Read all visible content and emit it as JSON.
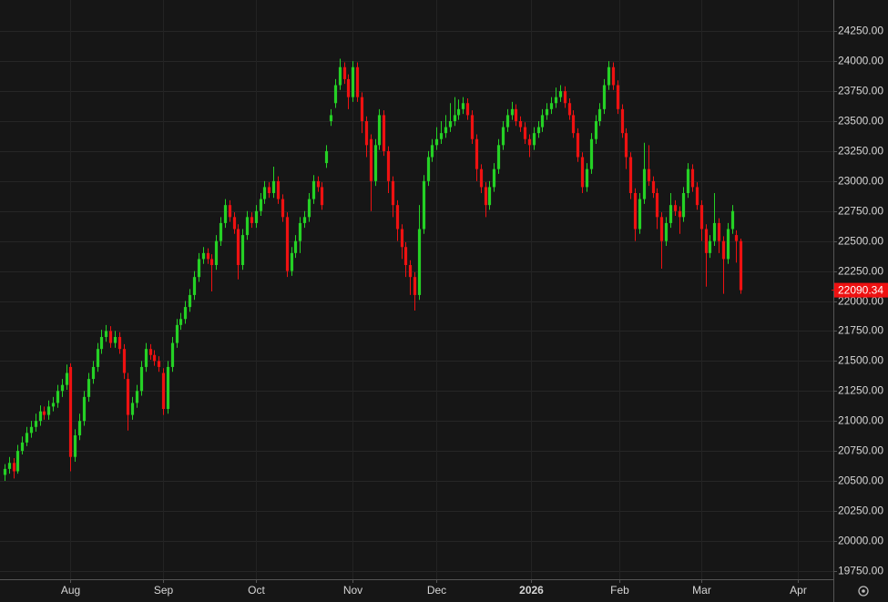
{
  "chart_data": {
    "type": "candlestick",
    "xlim": [
      -1,
      188
    ],
    "xticks": [
      {
        "value": 15,
        "label": "Aug"
      },
      {
        "value": 36,
        "label": "Sep"
      },
      {
        "value": 57,
        "label": "Oct"
      },
      {
        "value": 79,
        "label": "Nov"
      },
      {
        "value": 98,
        "label": "Dec"
      },
      {
        "value": 119.5,
        "label": "2026"
      },
      {
        "value": 139.5,
        "label": "Feb"
      },
      {
        "value": 158,
        "label": "Mar"
      },
      {
        "value": 180,
        "label": "Apr"
      }
    ],
    "ylim": [
      19680,
      24510
    ],
    "yticks": [
      {
        "value": 19750,
        "label": "19750.00"
      },
      {
        "value": 20000,
        "label": "20000.00"
      },
      {
        "value": 20250,
        "label": "20250.00"
      },
      {
        "value": 20500,
        "label": "20500.00"
      },
      {
        "value": 20750,
        "label": "20750.00"
      },
      {
        "value": 21000,
        "label": "21000.00"
      },
      {
        "value": 21250,
        "label": "21250.00"
      },
      {
        "value": 21500,
        "label": "21500.00"
      },
      {
        "value": 21750,
        "label": "21750.00"
      },
      {
        "value": 22000,
        "label": "22000.00"
      },
      {
        "value": 22250,
        "label": "22250.00"
      },
      {
        "value": 22500,
        "label": "22500.00"
      },
      {
        "value": 22750,
        "label": "22750.00"
      },
      {
        "value": 23000,
        "label": "23000.00"
      },
      {
        "value": 23250,
        "label": "23250.00"
      },
      {
        "value": 23500,
        "label": "23500.00"
      },
      {
        "value": 23750,
        "label": "23750.00"
      },
      {
        "value": 24000,
        "label": "24000.00"
      },
      {
        "value": 24250,
        "label": "24250.00"
      }
    ],
    "grid": true,
    "up_color": "#25d125",
    "down_color": "#ee1111",
    "last_price": 22090.34,
    "ohlc": [
      [
        20550,
        20640,
        20500,
        20600
      ],
      [
        20600,
        20700,
        20560,
        20650
      ],
      [
        20650,
        20690,
        20520,
        20580
      ],
      [
        20580,
        20800,
        20560,
        20750
      ],
      [
        20750,
        20870,
        20720,
        20820
      ],
      [
        20820,
        20950,
        20790,
        20900
      ],
      [
        20900,
        21000,
        20860,
        20950
      ],
      [
        20950,
        21060,
        20910,
        21000
      ],
      [
        21000,
        21130,
        20960,
        21080
      ],
      [
        21080,
        21120,
        21010,
        21050
      ],
      [
        21050,
        21170,
        21010,
        21120
      ],
      [
        21120,
        21200,
        21080,
        21150
      ],
      [
        21150,
        21300,
        21110,
        21250
      ],
      [
        21250,
        21350,
        21200,
        21300
      ],
      [
        21300,
        21470,
        21260,
        21400
      ],
      [
        21450,
        21480,
        20580,
        20700
      ],
      [
        20700,
        20930,
        20660,
        20880
      ],
      [
        20880,
        21060,
        20840,
        21000
      ],
      [
        21000,
        21250,
        20960,
        21200
      ],
      [
        21200,
        21400,
        21160,
        21350
      ],
      [
        21350,
        21500,
        21310,
        21450
      ],
      [
        21450,
        21650,
        21410,
        21600
      ],
      [
        21600,
        21760,
        21560,
        21700
      ],
      [
        21700,
        21800,
        21660,
        21750
      ],
      [
        21750,
        21790,
        21610,
        21650
      ],
      [
        21650,
        21750,
        21610,
        21700
      ],
      [
        21700,
        21740,
        21560,
        21600
      ],
      [
        21600,
        21640,
        21350,
        21400
      ],
      [
        21350,
        21400,
        20920,
        21050
      ],
      [
        21050,
        21200,
        21010,
        21150
      ],
      [
        21150,
        21300,
        21110,
        21250
      ],
      [
        21250,
        21500,
        21210,
        21450
      ],
      [
        21450,
        21650,
        21410,
        21600
      ],
      [
        21600,
        21640,
        21510,
        21550
      ],
      [
        21550,
        21590,
        21460,
        21500
      ],
      [
        21500,
        21540,
        21410,
        21450
      ],
      [
        21400,
        21440,
        21050,
        21100
      ],
      [
        21100,
        21500,
        21060,
        21450
      ],
      [
        21450,
        21700,
        21410,
        21650
      ],
      [
        21650,
        21850,
        21610,
        21800
      ],
      [
        21800,
        21900,
        21760,
        21850
      ],
      [
        21850,
        22000,
        21810,
        21950
      ],
      [
        21950,
        22100,
        21910,
        22050
      ],
      [
        22050,
        22250,
        22010,
        22200
      ],
      [
        22200,
        22400,
        22160,
        22350
      ],
      [
        22350,
        22450,
        22310,
        22400
      ],
      [
        22400,
        22440,
        22310,
        22350
      ],
      [
        22350,
        22390,
        22080,
        22300
      ],
      [
        22300,
        22550,
        22260,
        22500
      ],
      [
        22500,
        22700,
        22460,
        22650
      ],
      [
        22650,
        22850,
        22610,
        22800
      ],
      [
        22800,
        22840,
        22660,
        22700
      ],
      [
        22700,
        22740,
        22560,
        22600
      ],
      [
        22600,
        22640,
        22180,
        22300
      ],
      [
        22300,
        22600,
        22260,
        22550
      ],
      [
        22550,
        22750,
        22510,
        22700
      ],
      [
        22700,
        22740,
        22610,
        22650
      ],
      [
        22650,
        22800,
        22610,
        22750
      ],
      [
        22750,
        22900,
        22710,
        22850
      ],
      [
        22850,
        23000,
        22810,
        22950
      ],
      [
        22950,
        22990,
        22860,
        22900
      ],
      [
        22900,
        23120,
        22860,
        23000
      ],
      [
        23000,
        23040,
        22810,
        22850
      ],
      [
        22850,
        22890,
        22660,
        22700
      ],
      [
        22700,
        22740,
        22200,
        22250
      ],
      [
        22250,
        22450,
        22210,
        22400
      ],
      [
        22400,
        22550,
        22360,
        22500
      ],
      [
        22500,
        22700,
        22400,
        22650
      ],
      [
        22650,
        22750,
        22610,
        22700
      ],
      [
        22700,
        22900,
        22660,
        22850
      ],
      [
        22850,
        23050,
        22810,
        23000
      ],
      [
        23000,
        23040,
        22910,
        22950
      ],
      [
        22950,
        22990,
        22760,
        22800
      ],
      [
        23150,
        23300,
        23110,
        23250
      ],
      [
        23500,
        23600,
        23460,
        23550
      ],
      [
        23650,
        23850,
        23610,
        23800
      ],
      [
        23800,
        24020,
        23760,
        23950
      ],
      [
        23950,
        23990,
        23810,
        23850
      ],
      [
        23850,
        23890,
        23600,
        23700
      ],
      [
        23700,
        24000,
        23660,
        23950
      ],
      [
        23950,
        23990,
        23660,
        23700
      ],
      [
        23700,
        23740,
        23400,
        23500
      ],
      [
        23500,
        23540,
        23200,
        23300
      ],
      [
        23350,
        23390,
        22750,
        23000
      ],
      [
        23000,
        23350,
        22960,
        23300
      ],
      [
        23300,
        23600,
        23260,
        23550
      ],
      [
        23550,
        23590,
        23210,
        23250
      ],
      [
        23250,
        23290,
        22900,
        23000
      ],
      [
        23000,
        23040,
        22700,
        22800
      ],
      [
        22800,
        22840,
        22500,
        22600
      ],
      [
        22600,
        22640,
        22350,
        22450
      ],
      [
        22450,
        22490,
        22200,
        22300
      ],
      [
        22300,
        22340,
        22050,
        22200
      ],
      [
        22200,
        22240,
        21920,
        22050
      ],
      [
        22050,
        22800,
        22010,
        22600
      ],
      [
        22600,
        23050,
        22560,
        23000
      ],
      [
        23000,
        23250,
        22960,
        23200
      ],
      [
        23200,
        23350,
        23160,
        23300
      ],
      [
        23300,
        23450,
        23260,
        23350
      ],
      [
        23350,
        23500,
        23310,
        23400
      ],
      [
        23400,
        23550,
        23360,
        23450
      ],
      [
        23450,
        23650,
        23410,
        23500
      ],
      [
        23500,
        23700,
        23460,
        23550
      ],
      [
        23550,
        23680,
        23510,
        23600
      ],
      [
        23600,
        23700,
        23560,
        23650
      ],
      [
        23650,
        23690,
        23510,
        23550
      ],
      [
        23550,
        23590,
        23310,
        23350
      ],
      [
        23350,
        23390,
        23000,
        23100
      ],
      [
        23100,
        23140,
        22900,
        22950
      ],
      [
        22950,
        22990,
        22700,
        22800
      ],
      [
        22800,
        23000,
        22760,
        22950
      ],
      [
        22950,
        23150,
        22910,
        23100
      ],
      [
        23100,
        23350,
        23060,
        23300
      ],
      [
        23300,
        23500,
        23260,
        23450
      ],
      [
        23450,
        23600,
        23410,
        23550
      ],
      [
        23550,
        23660,
        23510,
        23600
      ],
      [
        23600,
        23640,
        23460,
        23500
      ],
      [
        23500,
        23540,
        23410,
        23450
      ],
      [
        23450,
        23490,
        23310,
        23350
      ],
      [
        23350,
        23390,
        23200,
        23300
      ],
      [
        23300,
        23450,
        23260,
        23400
      ],
      [
        23400,
        23500,
        23360,
        23450
      ],
      [
        23450,
        23600,
        23410,
        23550
      ],
      [
        23550,
        23650,
        23510,
        23600
      ],
      [
        23600,
        23700,
        23560,
        23650
      ],
      [
        23650,
        23780,
        23610,
        23700
      ],
      [
        23700,
        23800,
        23660,
        23750
      ],
      [
        23750,
        23790,
        23610,
        23650
      ],
      [
        23650,
        23690,
        23510,
        23550
      ],
      [
        23550,
        23590,
        23360,
        23400
      ],
      [
        23400,
        23440,
        23160,
        23200
      ],
      [
        23200,
        23240,
        22900,
        22950
      ],
      [
        22950,
        23150,
        22910,
        23100
      ],
      [
        23100,
        23400,
        23060,
        23350
      ],
      [
        23350,
        23550,
        23310,
        23500
      ],
      [
        23500,
        23650,
        23460,
        23600
      ],
      [
        23600,
        23850,
        23560,
        23800
      ],
      [
        23800,
        24000,
        23760,
        23950
      ],
      [
        23950,
        23990,
        23760,
        23800
      ],
      [
        23800,
        23840,
        23560,
        23600
      ],
      [
        23600,
        23640,
        23360,
        23400
      ],
      [
        23400,
        23440,
        23100,
        23200
      ],
      [
        23200,
        23240,
        22850,
        22900
      ],
      [
        22900,
        22940,
        22500,
        22600
      ],
      [
        22600,
        22900,
        22560,
        22850
      ],
      [
        22850,
        23320,
        22810,
        23100
      ],
      [
        23100,
        23300,
        22960,
        23000
      ],
      [
        23000,
        23040,
        22860,
        22900
      ],
      [
        22900,
        22940,
        22600,
        22700
      ],
      [
        22700,
        22740,
        22270,
        22500
      ],
      [
        22500,
        22700,
        22460,
        22650
      ],
      [
        22650,
        22900,
        22610,
        22800
      ],
      [
        22800,
        22840,
        22710,
        22750
      ],
      [
        22750,
        22790,
        22560,
        22700
      ],
      [
        22700,
        22950,
        22660,
        22900
      ],
      [
        22900,
        23150,
        22860,
        23100
      ],
      [
        23100,
        23140,
        22910,
        22950
      ],
      [
        22950,
        22990,
        22760,
        22800
      ],
      [
        22800,
        22840,
        22500,
        22600
      ],
      [
        22600,
        22640,
        22120,
        22400
      ],
      [
        22400,
        22550,
        22360,
        22500
      ],
      [
        22500,
        22900,
        22460,
        22650
      ],
      [
        22650,
        22690,
        22400,
        22500
      ],
      [
        22500,
        22540,
        22060,
        22350
      ],
      [
        22350,
        22650,
        22310,
        22600
      ],
      [
        22600,
        22800,
        22560,
        22750
      ],
      [
        22550,
        22590,
        22320,
        22500
      ],
      [
        22500,
        22520,
        22060,
        22090.34
      ]
    ]
  }
}
